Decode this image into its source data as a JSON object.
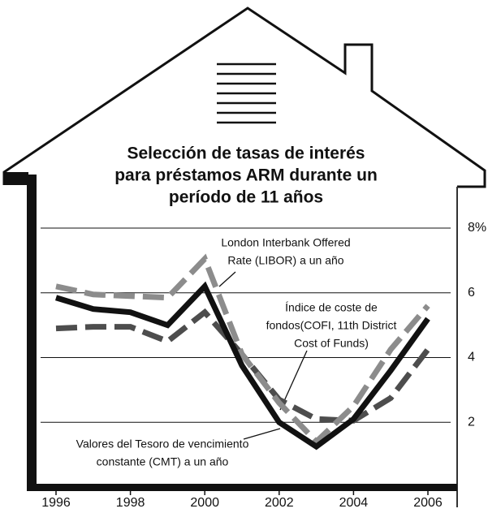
{
  "chart_data": {
    "type": "line",
    "title": [
      "Selección de tasas de interés",
      "para préstamos ARM durante un",
      "período de 11 años"
    ],
    "x": [
      1996,
      1997,
      1998,
      1999,
      2000,
      2001,
      2002,
      2003,
      2004,
      2005,
      2006
    ],
    "series": [
      {
        "color": "#111111",
        "dash": "none",
        "values": [
          5.85,
          5.5,
          5.4,
          5.0,
          6.2,
          3.75,
          2.0,
          1.25,
          2.1,
          3.6,
          5.2
        ]
      },
      {
        "color": "#8c8c8c",
        "dash": "dashed",
        "values": [
          6.2,
          5.95,
          5.9,
          5.85,
          7.05,
          4.1,
          2.6,
          1.4,
          2.5,
          4.25,
          5.6
        ]
      },
      {
        "color": "#4d4d4d",
        "dash": "dashed",
        "values": [
          4.9,
          4.95,
          4.95,
          4.5,
          5.4,
          4.1,
          2.7,
          2.1,
          2.05,
          2.75,
          4.25
        ]
      }
    ],
    "annotations": [
      {
        "lines": [
          "Valores del Tesoro de vencimiento",
          "constante (CMT) a un año"
        ]
      },
      {
        "lines": [
          "London Interbank Offered",
          "Rate (LIBOR) a un año"
        ]
      },
      {
        "lines": [
          "Índice de coste de",
          "fondos(COFI, 11th District",
          "Cost of Funds)"
        ]
      }
    ],
    "xlim": [
      1996,
      2006
    ],
    "xticks": [
      1996,
      1998,
      2000,
      2002,
      2004,
      2006
    ],
    "ylim": [
      0,
      8
    ],
    "yticks": [
      2,
      4,
      6,
      {
        "value": 8,
        "label": "8%"
      }
    ],
    "grid": true
  }
}
